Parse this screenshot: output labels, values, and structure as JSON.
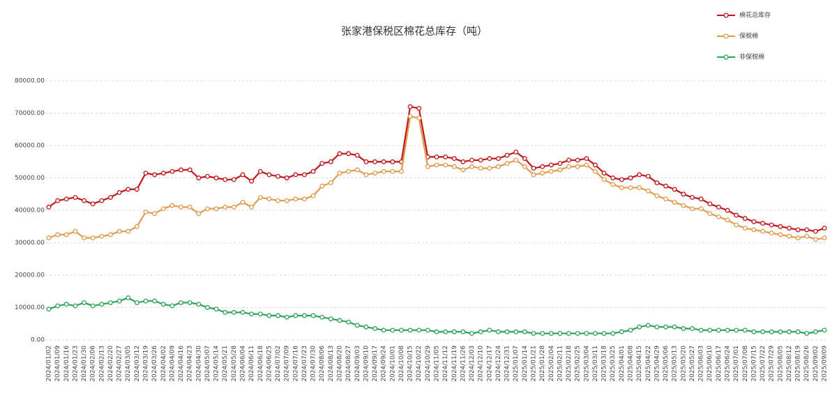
{
  "chart_data": {
    "type": "line",
    "title": "张家港保税区棉花总库存（吨）",
    "categories": [
      "2024/01/02",
      "2024/01/09",
      "2024/01/16",
      "2024/01/23",
      "2024/01/30",
      "2024/02/06",
      "2024/02/13",
      "2024/02/20",
      "2024/02/27",
      "2024/03/05",
      "2024/03/12",
      "2024/03/19",
      "2024/03/26",
      "2024/04/02",
      "2024/04/09",
      "2024/04/16",
      "2024/04/23",
      "2024/04/30",
      "2024/05/07",
      "2024/05/14",
      "2024/05/21",
      "2024/05/28",
      "2024/06/04",
      "2024/06/11",
      "2024/06/18",
      "2024/06/25",
      "2024/07/02",
      "2024/07/09",
      "2024/07/16",
      "2024/07/23",
      "2024/07/30",
      "2024/08/06",
      "2024/08/13",
      "2024/08/20",
      "2024/08/27",
      "2024/09/03",
      "2024/09/10",
      "2024/09/17",
      "2024/09/24",
      "2024/10/01",
      "2024/10/08",
      "2024/10/15",
      "2024/10/22",
      "2024/10/29",
      "2024/11/05",
      "2024/11/12",
      "2024/11/19",
      "2024/11/26",
      "2024/12/03",
      "2024/12/10",
      "2024/12/17",
      "2024/12/24",
      "2024/12/31",
      "2025/01/07",
      "2025/01/14",
      "2025/01/21",
      "2025/01/28",
      "2025/02/04",
      "2025/02/11",
      "2025/02/18",
      "2025/02/25",
      "2025/03/04",
      "2025/03/11",
      "2025/03/18",
      "2025/03/25",
      "2025/04/01",
      "2025/04/08",
      "2025/04/15",
      "2025/04/22",
      "2025/04/29",
      "2025/05/06",
      "2025/05/13",
      "2025/05/20",
      "2025/05/27",
      "2025/06/03",
      "2025/06/10",
      "2025/06/17",
      "2025/06/24",
      "2025/07/01",
      "2025/07/08",
      "2025/07/15",
      "2025/07/22",
      "2025/07/29",
      "2025/08/05",
      "2025/08/12",
      "2025/08/19",
      "2025/08/26",
      "2025/09/02",
      "2025/09/09"
    ],
    "series": [
      {
        "name": "棉花总库存",
        "color": "#c0161b",
        "values": [
          41000,
          43000,
          43500,
          44000,
          43000,
          42000,
          43000,
          44000,
          45500,
          46500,
          46500,
          51500,
          51000,
          51500,
          52000,
          52500,
          52500,
          50000,
          50500,
          50000,
          49500,
          49500,
          51000,
          49000,
          52000,
          51000,
          50500,
          50000,
          51000,
          51000,
          52000,
          54500,
          55000,
          57500,
          57500,
          57000,
          55000,
          55000,
          55000,
          55000,
          55000,
          72000,
          71500,
          56500,
          56500,
          56500,
          56000,
          55000,
          55500,
          55500,
          56000,
          56000,
          57000,
          58000,
          56000,
          53000,
          53500,
          54000,
          54500,
          55500,
          55500,
          56000,
          54000,
          51500,
          50000,
          49500,
          50000,
          51000,
          50500,
          48500,
          47500,
          46500,
          45000,
          44000,
          43500,
          42000,
          41000,
          40000,
          38500,
          37500,
          36500,
          36000,
          35500,
          35000,
          34500,
          34000,
          34000,
          33500,
          34500
        ]
      },
      {
        "name": "保税棉",
        "color": "#e09a4c",
        "values": [
          31500,
          32500,
          32500,
          33500,
          31500,
          31500,
          32000,
          32500,
          33500,
          33500,
          35000,
          39500,
          39000,
          40500,
          41500,
          41000,
          41000,
          39000,
          40500,
          40500,
          41000,
          41000,
          42500,
          41000,
          44000,
          43500,
          43000,
          43000,
          43500,
          43500,
          44500,
          47500,
          48500,
          51500,
          52000,
          52500,
          51000,
          51500,
          52000,
          52000,
          52000,
          69000,
          68500,
          53500,
          54000,
          54000,
          53500,
          52500,
          53500,
          53000,
          53000,
          53500,
          54500,
          55500,
          53500,
          51000,
          51500,
          52000,
          52500,
          53500,
          53500,
          54000,
          52000,
          49500,
          48000,
          47000,
          47000,
          47000,
          46000,
          44500,
          43500,
          42500,
          41500,
          40500,
          40500,
          39000,
          38000,
          37000,
          35500,
          34500,
          34000,
          33500,
          33000,
          32500,
          32000,
          31500,
          32000,
          31000,
          31500
        ]
      },
      {
        "name": "非保税棉",
        "color": "#2ea356",
        "values": [
          9500,
          10500,
          11000,
          10500,
          11500,
          10500,
          11000,
          11500,
          12000,
          13000,
          11500,
          12000,
          12000,
          11000,
          10500,
          11500,
          11500,
          11000,
          10000,
          9500,
          8500,
          8500,
          8500,
          8000,
          8000,
          7500,
          7500,
          7000,
          7500,
          7500,
          7500,
          7000,
          6500,
          6000,
          5500,
          4500,
          4000,
          3500,
          3000,
          3000,
          3000,
          3000,
          3000,
          3000,
          2500,
          2500,
          2500,
          2500,
          2000,
          2500,
          3000,
          2500,
          2500,
          2500,
          2500,
          2000,
          2000,
          2000,
          2000,
          2000,
          2000,
          2000,
          2000,
          2000,
          2000,
          2500,
          3000,
          4000,
          4500,
          4000,
          4000,
          4000,
          3500,
          3500,
          3000,
          3000,
          3000,
          3000,
          3000,
          3000,
          2500,
          2500,
          2500,
          2500,
          2500,
          2500,
          2000,
          2500,
          3000
        ]
      }
    ],
    "ylim": [
      0,
      80000
    ],
    "yticks": [
      {
        "value": 0,
        "label": "0.00"
      },
      {
        "value": 10000,
        "label": "10000.00"
      },
      {
        "value": 20000,
        "label": "20000.00"
      },
      {
        "value": 30000,
        "label": "30000.00"
      },
      {
        "value": 40000,
        "label": "40000.00"
      },
      {
        "value": 50000,
        "label": "50000.00"
      },
      {
        "value": 60000,
        "label": "60000.00"
      },
      {
        "value": 70000,
        "label": "70000.00"
      },
      {
        "value": 80000,
        "label": "80000.00"
      }
    ],
    "grid": true,
    "legend": "top-right"
  }
}
